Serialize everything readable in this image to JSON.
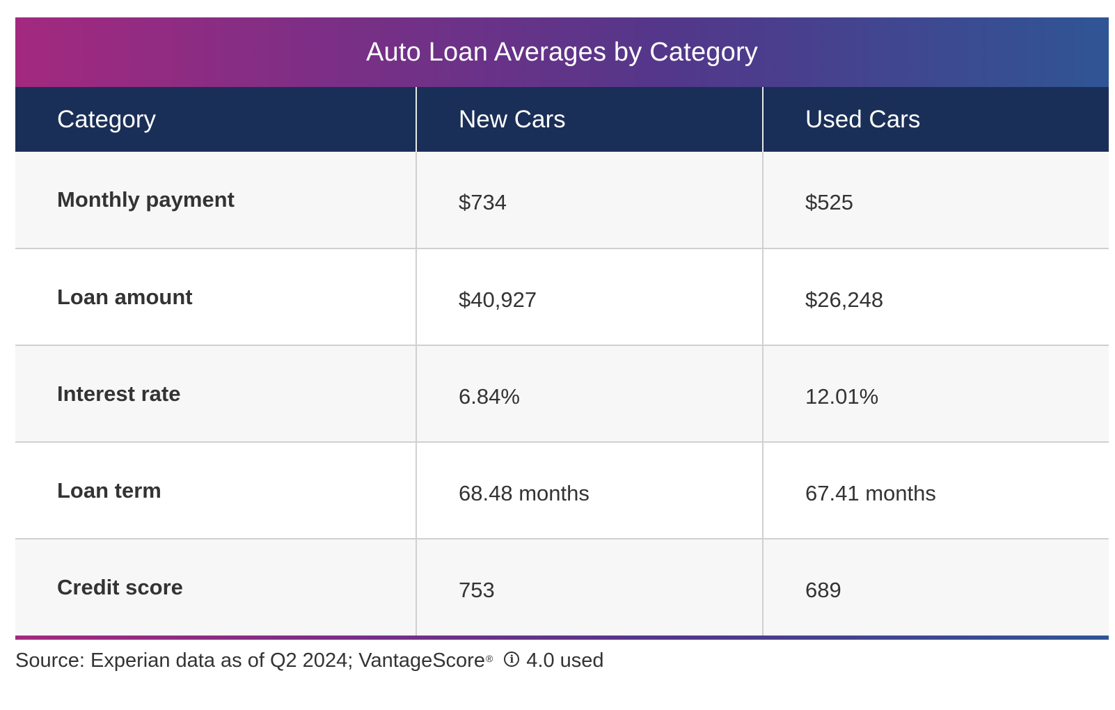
{
  "chart_data": {
    "type": "table",
    "title": "Auto Loan Averages by Category",
    "columns": [
      "Category",
      "New Cars",
      "Used Cars"
    ],
    "rows": [
      {
        "category": "Monthly payment",
        "new_cars": "$734",
        "used_cars": "$525"
      },
      {
        "category": "Loan amount",
        "new_cars": "$40,927",
        "used_cars": "$26,248"
      },
      {
        "category": "Interest rate",
        "new_cars": "6.84%",
        "used_cars": "12.01%"
      },
      {
        "category": "Loan term",
        "new_cars": "68.48 months",
        "used_cars": "67.41 months"
      },
      {
        "category": "Credit score",
        "new_cars": "753",
        "used_cars": "689"
      }
    ]
  },
  "source": {
    "prefix": "Source: Experian data as of Q2 2024; VantageScore",
    "registered_mark": "®",
    "info_icon_glyph": "i",
    "suffix": "4.0 used"
  },
  "colors": {
    "header_bg": "#1a2f57",
    "gradient_start": "#a3297f",
    "gradient_end": "#2f5595",
    "row_alt_bg": "#f7f7f7"
  }
}
